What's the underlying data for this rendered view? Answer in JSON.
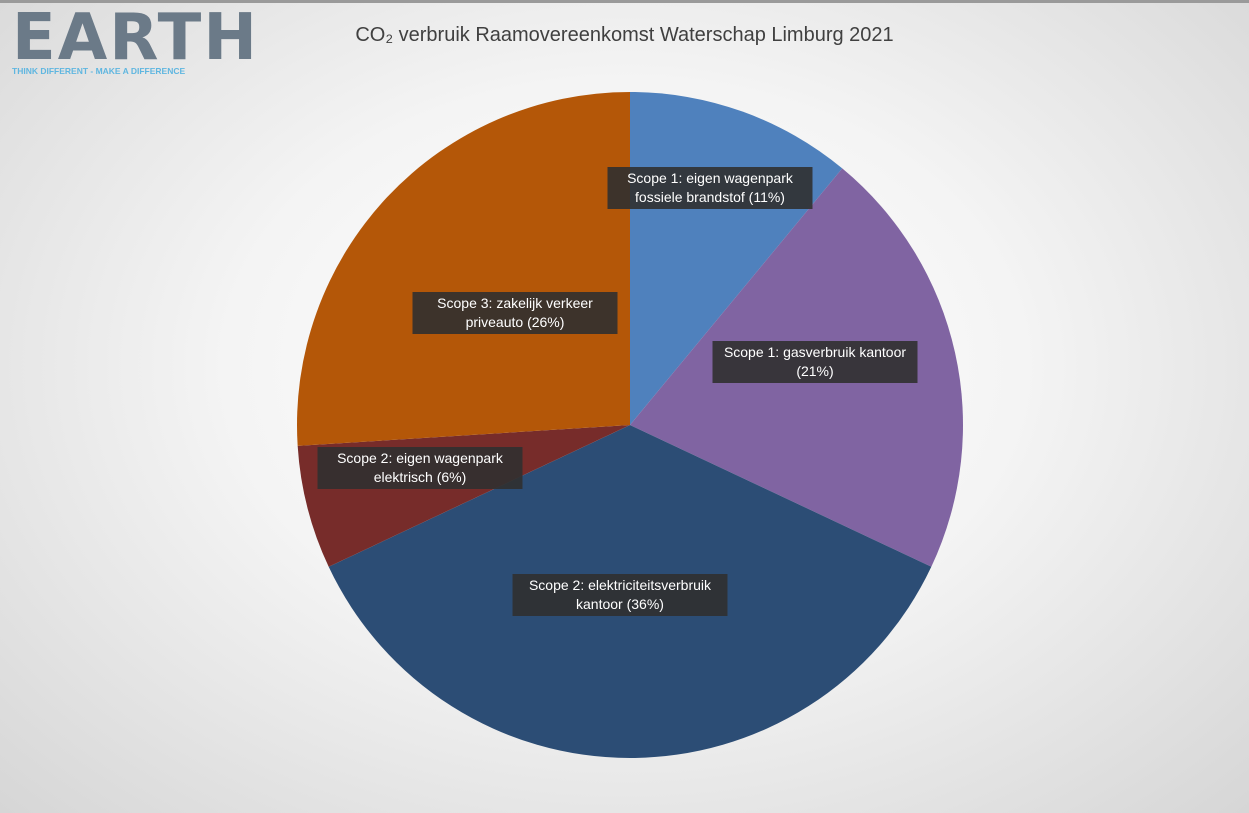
{
  "logo": {
    "name": "EARTH",
    "tagline": "THINK DIFFERENT - MAKE A DIFFERENCE"
  },
  "chart_data": {
    "type": "pie",
    "title": "CO₂ verbruik Raamovereenkomst Waterschap Limburg 2021",
    "categories": [
      "Scope 1: eigen wagenpark fossiele brandstof",
      "Scope 1: gasverbruik kantoor",
      "Scope 2: elektriciteitsverbruik kantoor",
      "Scope 2: eigen wagenpark elektrisch",
      "Scope 3: zakelijk verkeer priveauto"
    ],
    "values": [
      11,
      21,
      36,
      6,
      26
    ],
    "value_labels": [
      "(11%)",
      "(21%)",
      "(36%)",
      "(6%)",
      "(26%)"
    ],
    "colors": [
      "#4f81bd",
      "#8064a2",
      "#2c4d75",
      "#772c2a",
      "#b45708"
    ]
  }
}
